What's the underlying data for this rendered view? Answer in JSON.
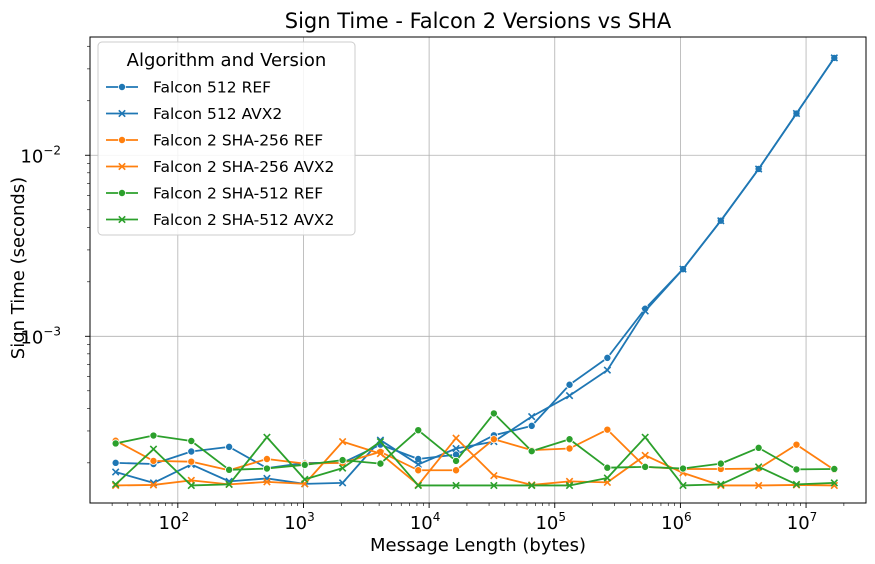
{
  "chart_data": {
    "type": "line",
    "title": "Sign Time - Falcon 2 Versions vs SHA",
    "xlabel": "Message Length (bytes)",
    "ylabel": "Sign Time (seconds)",
    "xscale": "log",
    "yscale": "log",
    "xlim": [
      20,
      30000000
    ],
    "ylim": [
      0.00012,
      0.045
    ],
    "grid": true,
    "legend": {
      "title": "Algorithm and Version",
      "position": "upper-left"
    },
    "x_ticks": [
      {
        "value": 100,
        "base": "10",
        "exp": "2"
      },
      {
        "value": 1000,
        "base": "10",
        "exp": "3"
      },
      {
        "value": 10000,
        "base": "10",
        "exp": "4"
      },
      {
        "value": 100000,
        "base": "10",
        "exp": "5"
      },
      {
        "value": 1000000,
        "base": "10",
        "exp": "6"
      },
      {
        "value": 10000000,
        "base": "10",
        "exp": "7"
      }
    ],
    "y_ticks": [
      {
        "value": 0.001,
        "base": "10",
        "exp": "−3"
      },
      {
        "value": 0.01,
        "base": "10",
        "exp": "−2"
      }
    ],
    "x": [
      32,
      64,
      128,
      256,
      512,
      1024,
      2048,
      4096,
      8192,
      16384,
      32768,
      65536,
      131072,
      262144,
      524288,
      1048576,
      2097152,
      4194304,
      8388608,
      16777216
    ],
    "series": [
      {
        "name": "Falcon 512 REF",
        "color": "#1f77b4",
        "marker": "circle",
        "values": [
          0.0002,
          0.000197,
          0.000231,
          0.000245,
          0.000187,
          0.0002,
          0.0002,
          0.000252,
          0.00021,
          0.000222,
          0.000284,
          0.00032,
          0.00054,
          0.00076,
          0.00142,
          0.00235,
          0.00435,
          0.0084,
          0.017,
          0.0345
        ]
      },
      {
        "name": "Falcon 512 AVX2",
        "color": "#1f77b4",
        "marker": "x",
        "values": [
          0.000178,
          0.000155,
          0.000196,
          0.000158,
          0.000164,
          0.000153,
          0.000155,
          0.000267,
          0.000196,
          0.00024,
          0.000262,
          0.00036,
          0.00047,
          0.00065,
          0.00138,
          0.00235,
          0.00435,
          0.0084,
          0.017,
          0.0345
        ]
      },
      {
        "name": "Falcon 2 SHA-256 REF",
        "color": "#ff7f0e",
        "marker": "circle",
        "values": [
          0.000265,
          0.000205,
          0.000203,
          0.000182,
          0.00021,
          0.000198,
          0.0002,
          0.00023,
          0.000182,
          0.000182,
          0.00027,
          0.000235,
          0.00024,
          0.000305,
          0.00019,
          0.000185,
          0.000185,
          0.000186,
          0.000252,
          0.000183
        ]
      },
      {
        "name": "Falcon 2 SHA-256 AVX2",
        "color": "#ff7f0e",
        "marker": "x",
        "values": [
          0.00015,
          0.000151,
          0.00016,
          0.000152,
          0.000157,
          0.000153,
          0.000262,
          0.000225,
          0.000151,
          0.000274,
          0.00017,
          0.000151,
          0.000158,
          0.000156,
          0.00022,
          0.000176,
          0.00015,
          0.00015,
          0.000151,
          0.00015
        ]
      },
      {
        "name": "Falcon 2 SHA-512 REF",
        "color": "#2ca02c",
        "marker": "circle",
        "values": [
          0.000256,
          0.000283,
          0.000264,
          0.000183,
          0.000186,
          0.000195,
          0.000207,
          0.000198,
          0.000303,
          0.000205,
          0.000375,
          0.000232,
          0.00027,
          0.000188,
          0.00019,
          0.000186,
          0.000198,
          0.000242,
          0.000184,
          0.000185
        ]
      },
      {
        "name": "Falcon 2 SHA-512 AVX2",
        "color": "#2ca02c",
        "marker": "x",
        "values": [
          0.000152,
          0.000238,
          0.00015,
          0.000152,
          0.000277,
          0.000162,
          0.000187,
          0.000262,
          0.00015,
          0.00015,
          0.00015,
          0.00015,
          0.00015,
          0.000165,
          0.000277,
          0.00015,
          0.000152,
          0.00019,
          0.000152,
          0.000155
        ]
      }
    ]
  }
}
